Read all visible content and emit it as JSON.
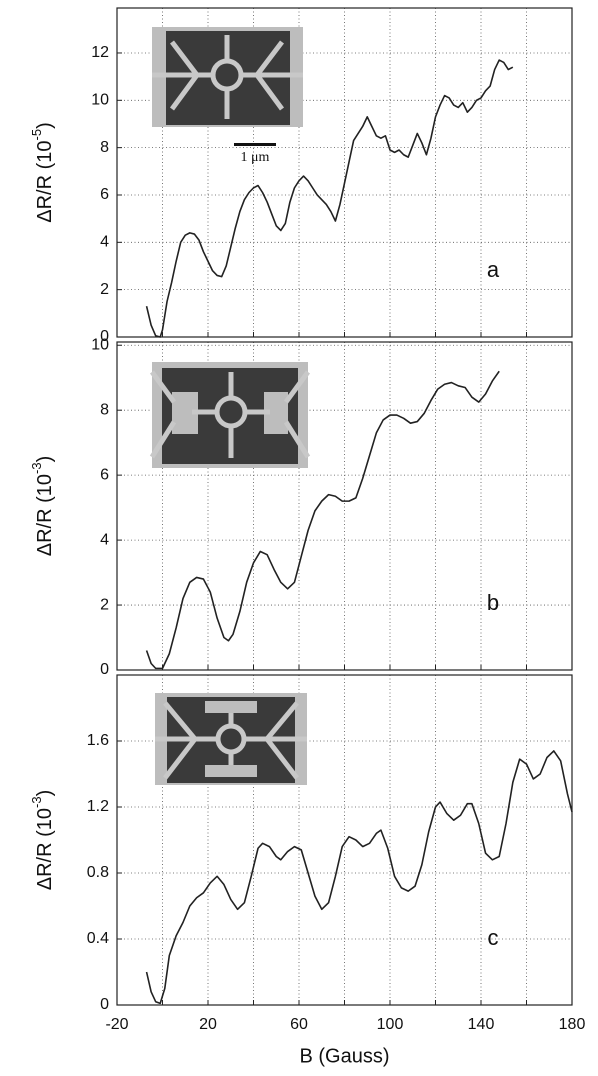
{
  "chart_data": [
    {
      "type": "line",
      "label": "a",
      "color": "#222222",
      "ylabel": {
        "base": "ΔR/R (10",
        "exponent": "-5",
        "close": ")"
      },
      "inset_scale": "1 μm",
      "xlim": [
        -20,
        180
      ],
      "xgrid": [
        0,
        20,
        40,
        60,
        80,
        100,
        120,
        140,
        160
      ],
      "ylim": [
        0,
        13.9
      ],
      "yticks": [
        0,
        2,
        4,
        6,
        8,
        10,
        12
      ],
      "grid": true,
      "x": [
        -7,
        -5,
        -3,
        -1,
        0,
        2,
        4,
        6,
        8,
        10,
        12,
        14,
        16,
        18,
        20,
        22,
        24,
        26,
        28,
        30,
        32,
        34,
        36,
        38,
        40,
        42,
        44,
        46,
        48,
        50,
        52,
        54,
        56,
        58,
        60,
        62,
        64,
        66,
        68,
        70,
        72,
        74,
        76,
        78,
        80,
        82,
        84,
        86,
        88,
        90,
        92,
        94,
        96,
        98,
        100,
        102,
        104,
        106,
        108,
        110,
        112,
        114,
        116,
        118,
        120,
        122,
        124,
        126,
        128,
        130,
        132,
        134,
        136,
        138,
        140,
        142,
        144,
        146,
        148,
        150,
        152,
        154
      ],
      "values": [
        1.3,
        0.5,
        0.05,
        0.0,
        0.3,
        1.5,
        2.3,
        3.2,
        4.0,
        4.3,
        4.4,
        4.35,
        4.1,
        3.6,
        3.2,
        2.8,
        2.6,
        2.55,
        3.0,
        3.8,
        4.6,
        5.3,
        5.8,
        6.1,
        6.3,
        6.4,
        6.1,
        5.7,
        5.2,
        4.7,
        4.5,
        4.8,
        5.7,
        6.3,
        6.6,
        6.8,
        6.6,
        6.3,
        6.0,
        5.8,
        5.6,
        5.3,
        4.9,
        5.6,
        6.5,
        7.4,
        8.3,
        8.6,
        8.9,
        9.3,
        8.9,
        8.5,
        8.4,
        8.5,
        7.9,
        7.8,
        7.9,
        7.7,
        7.6,
        8.1,
        8.6,
        8.2,
        7.7,
        8.4,
        9.3,
        9.8,
        10.2,
        10.1,
        9.8,
        9.7,
        9.9,
        9.5,
        9.7,
        10.0,
        10.1,
        10.4,
        10.6,
        11.3,
        11.7,
        11.6,
        11.3,
        11.4
      ]
    },
    {
      "type": "line",
      "label": "b",
      "color": "#222222",
      "ylabel": {
        "base": "ΔR/R (10",
        "exponent": "-3",
        "close": ")"
      },
      "xlim": [
        -20,
        180
      ],
      "xgrid": [
        0,
        20,
        40,
        60,
        80,
        100,
        120,
        140,
        160
      ],
      "ylim": [
        0,
        10.1
      ],
      "yticks": [
        0,
        2,
        4,
        6,
        8,
        10
      ],
      "grid": true,
      "x": [
        -7,
        -5,
        -3,
        0,
        3,
        6,
        9,
        12,
        15,
        18,
        21,
        24,
        27,
        29,
        31,
        34,
        37,
        40,
        43,
        46,
        49,
        52,
        55,
        58,
        61,
        64,
        67,
        70,
        73,
        76,
        79,
        82,
        85,
        88,
        91,
        94,
        97,
        100,
        103,
        106,
        109,
        112,
        115,
        118,
        121,
        124,
        127,
        130,
        133,
        136,
        139,
        142,
        145,
        148
      ],
      "values": [
        0.6,
        0.2,
        0.05,
        0.05,
        0.5,
        1.3,
        2.2,
        2.7,
        2.85,
        2.8,
        2.4,
        1.6,
        1.0,
        0.9,
        1.1,
        1.8,
        2.7,
        3.3,
        3.65,
        3.55,
        3.1,
        2.7,
        2.5,
        2.7,
        3.5,
        4.3,
        4.9,
        5.2,
        5.4,
        5.35,
        5.2,
        5.2,
        5.3,
        5.9,
        6.6,
        7.3,
        7.7,
        7.85,
        7.85,
        7.75,
        7.6,
        7.65,
        7.9,
        8.3,
        8.65,
        8.8,
        8.85,
        8.75,
        8.7,
        8.4,
        8.25,
        8.5,
        8.9,
        9.2
      ]
    },
    {
      "type": "line",
      "label": "c",
      "color": "#222222",
      "ylabel": {
        "base": "ΔR/R (10",
        "exponent": "-3",
        "close": ")"
      },
      "xlabel": "B (Gauss)",
      "xlim": [
        -20,
        180
      ],
      "xgrid": [
        0,
        20,
        40,
        60,
        80,
        100,
        120,
        140,
        160
      ],
      "xticks": [
        -20,
        20,
        60,
        100,
        140,
        180
      ],
      "ylim": [
        0,
        2.0
      ],
      "yticks": [
        0,
        0.4,
        0.8,
        1.2,
        1.6
      ],
      "grid": true,
      "x": [
        -7,
        -5,
        -3,
        -1,
        1,
        3,
        6,
        9,
        12,
        15,
        18,
        21,
        24,
        27,
        30,
        33,
        36,
        39,
        42,
        44,
        47,
        50,
        52,
        55,
        58,
        61,
        64,
        67,
        70,
        73,
        76,
        79,
        82,
        85,
        88,
        91,
        94,
        96,
        99,
        102,
        105,
        108,
        111,
        114,
        117,
        120,
        122,
        125,
        128,
        131,
        134,
        136,
        139,
        142,
        145,
        148,
        151,
        154,
        157,
        160,
        163,
        166,
        169,
        172,
        175,
        178,
        180
      ],
      "values": [
        0.2,
        0.08,
        0.02,
        0.01,
        0.1,
        0.3,
        0.42,
        0.5,
        0.6,
        0.65,
        0.68,
        0.74,
        0.78,
        0.73,
        0.64,
        0.58,
        0.62,
        0.78,
        0.95,
        0.98,
        0.96,
        0.9,
        0.88,
        0.93,
        0.96,
        0.94,
        0.8,
        0.66,
        0.58,
        0.62,
        0.78,
        0.96,
        1.02,
        1.0,
        0.96,
        0.98,
        1.04,
        1.06,
        0.95,
        0.78,
        0.71,
        0.69,
        0.72,
        0.85,
        1.05,
        1.2,
        1.23,
        1.16,
        1.12,
        1.15,
        1.22,
        1.22,
        1.1,
        0.92,
        0.88,
        0.9,
        1.1,
        1.35,
        1.49,
        1.46,
        1.37,
        1.4,
        1.5,
        1.54,
        1.48,
        1.28,
        1.17
      ]
    }
  ]
}
